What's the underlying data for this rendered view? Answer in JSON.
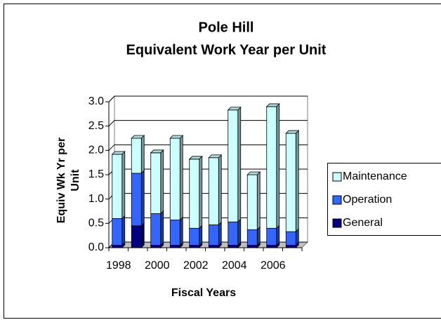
{
  "chart_data": {
    "type": "bar",
    "stacked": true,
    "title": "Pole Hill",
    "subtitle": "Equivalent Work Year per Unit",
    "x_label": "Fiscal Years",
    "y_label": "Equiv Wk Yr per Unit",
    "categories": [
      "1998",
      null,
      "2000",
      null,
      "2002",
      null,
      "2004",
      null,
      "2006",
      null
    ],
    "series": [
      {
        "name": "General",
        "color": "#000080",
        "values": [
          0.05,
          0.45,
          0.05,
          0.05,
          0.05,
          0.05,
          0.05,
          0.05,
          0.05,
          0.05
        ]
      },
      {
        "name": "Operation",
        "color": "#3366ff",
        "values": [
          0.55,
          1.08,
          0.65,
          0.52,
          0.35,
          0.42,
          0.48,
          0.32,
          0.35,
          0.28
        ]
      },
      {
        "name": "Maintenance",
        "color": "#ccffff",
        "values": [
          1.32,
          0.72,
          1.25,
          1.68,
          1.42,
          1.38,
          2.3,
          1.13,
          2.5,
          2.02
        ]
      }
    ],
    "ylim": [
      0,
      3
    ],
    "yticks": [
      {
        "value": 0,
        "label": "0.0"
      },
      {
        "value": 0.5,
        "label": "0.5"
      },
      {
        "value": 1,
        "label": "1.0"
      },
      {
        "value": 1.5,
        "label": "1.5"
      },
      {
        "value": 2,
        "label": "2.0"
      },
      {
        "value": 2.5,
        "label": "2.5"
      },
      {
        "value": 3,
        "label": "3.0"
      }
    ],
    "grid": true,
    "legend": "right"
  }
}
